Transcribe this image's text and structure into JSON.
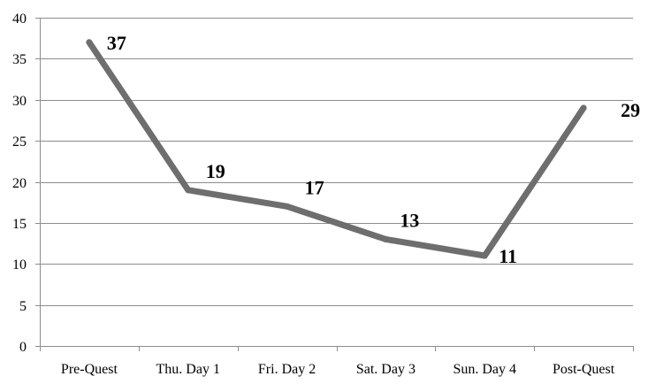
{
  "chart_data": {
    "type": "line",
    "title": "",
    "xlabel": "",
    "ylabel": "",
    "categories": [
      "Pre-Quest",
      "Thu. Day 1",
      "Fri. Day 2",
      "Sat. Day 3",
      "Sun. Day 4",
      "Post-Quest"
    ],
    "series": [
      {
        "values": [
          37,
          19,
          17,
          13,
          11,
          29
        ]
      }
    ],
    "data_labels": [
      "37",
      "19",
      "17",
      "13",
      "11",
      "29"
    ],
    "y_ticks": [
      "0",
      "5",
      "10",
      "15",
      "20",
      "25",
      "30",
      "35",
      "40"
    ],
    "ylim": [
      0,
      40
    ],
    "grid": true,
    "legend": "none",
    "line_color": "#6e6e6e"
  }
}
